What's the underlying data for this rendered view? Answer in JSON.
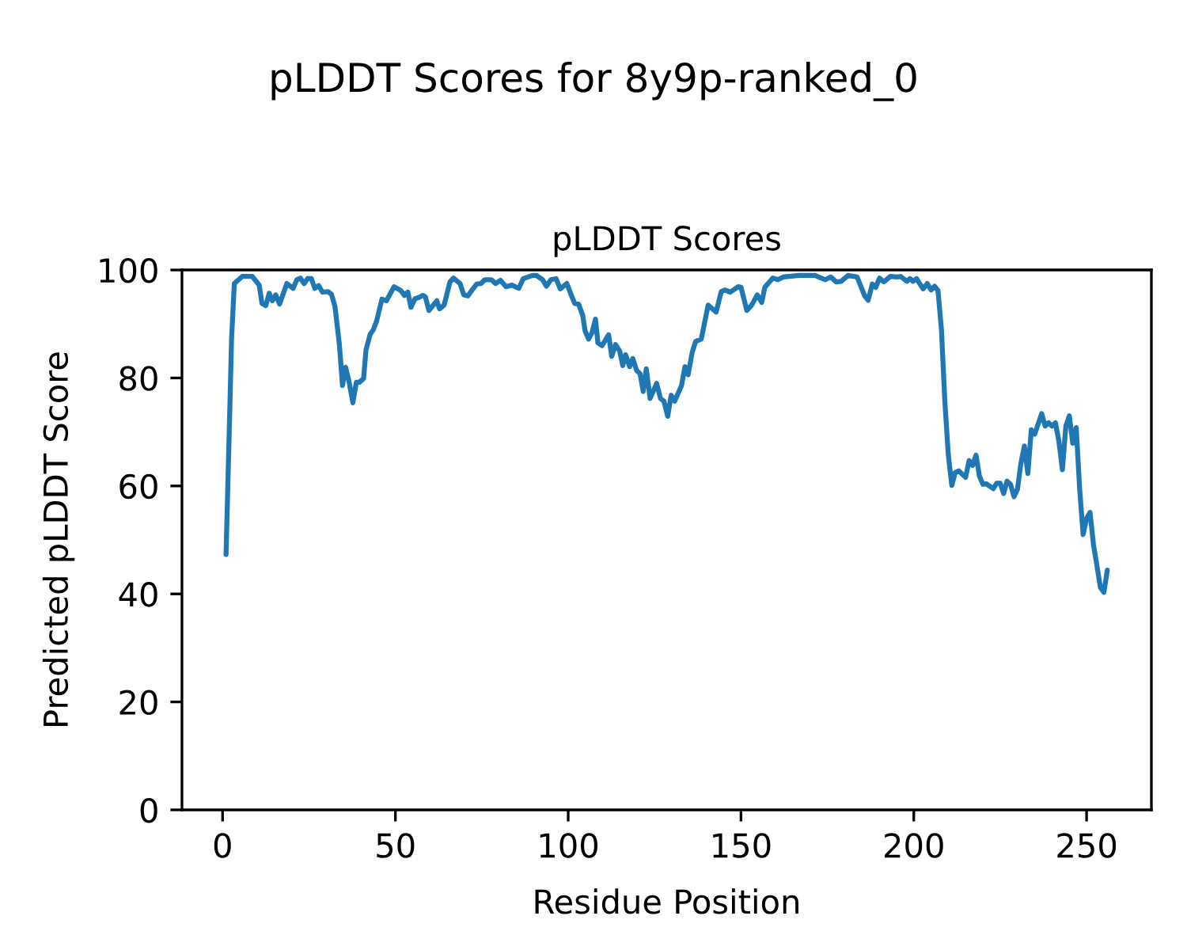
{
  "chart_data": {
    "type": "line",
    "title": "pLDDT Scores for 8y9p-ranked_0",
    "subtitle": "pLDDT Scores",
    "xlabel": "Residue Position",
    "ylabel": "Predicted pLDDT Score",
    "xlim": [
      -11.75,
      268.75
    ],
    "ylim": [
      0,
      100
    ],
    "xticks": [
      0,
      50,
      100,
      150,
      200,
      250
    ],
    "yticks": [
      0,
      20,
      40,
      60,
      80,
      100
    ],
    "grid": false,
    "series": [
      {
        "color": "#1f77b4",
        "x": [
          1,
          2,
          2.6,
          3.4,
          5.7,
          8.6,
          10.6,
          11.4,
          12.5,
          13.5,
          14.4,
          15.4,
          16.5,
          18.6,
          20.4,
          21.5,
          22.5,
          23.6,
          24.6,
          25.7,
          26.7,
          27.8,
          28.9,
          30.5,
          31.5,
          32.5,
          33.8,
          34.7,
          35.6,
          36.6,
          37.7,
          38.7,
          39.6,
          40.8,
          41.5,
          42.7,
          43.6,
          44.6,
          46.1,
          47.4,
          49.6,
          51.6,
          52.6,
          53.6,
          54.5,
          55.7,
          56.8,
          58,
          58.7,
          59.7,
          61,
          62,
          62.8,
          64.1,
          65.8,
          66.8,
          68.7,
          69.8,
          71,
          72.1,
          73.5,
          74.8,
          75.9,
          77.8,
          79,
          80.4,
          82,
          83.7,
          85.7,
          87,
          89.7,
          90.8,
          92.6,
          93.7,
          95,
          96.5,
          97.7,
          99.6,
          100.8,
          101.9,
          103,
          104.2,
          104.9,
          105.9,
          106.9,
          107.9,
          108.6,
          109.8,
          111.7,
          112.6,
          113.7,
          114.9,
          115.8,
          116.6,
          117.8,
          118.7,
          119.8,
          120.8,
          121.7,
          122.6,
          123.7,
          125.6,
          126.7,
          127.7,
          128.8,
          129.8,
          130.8,
          132.8,
          133.8,
          134.7,
          135.9,
          136.9,
          138.5,
          140.5,
          142.8,
          144.3,
          145.3,
          146.9,
          149.2,
          150,
          151.7,
          153.1,
          154.7,
          156,
          156.9,
          159.2,
          160.7,
          162.2,
          166.8,
          171.4,
          174.4,
          176,
          177.5,
          179,
          181,
          183.6,
          185.8,
          186.8,
          188,
          189,
          190.1,
          191.3,
          193.2,
          195.1,
          196.2,
          198,
          198.9,
          199.8,
          200.8,
          202.7,
          203.9,
          205,
          206,
          207,
          208,
          209,
          210,
          211,
          212,
          213,
          215,
          216,
          217,
          218,
          219,
          220,
          221,
          223,
          224,
          225,
          226,
          227,
          228,
          229,
          230,
          231,
          232,
          233,
          234,
          235,
          236,
          237,
          238,
          239,
          240,
          241,
          242,
          243,
          244,
          245,
          246,
          247,
          248,
          249,
          250,
          251,
          252,
          253,
          254,
          255,
          256
        ],
        "values": [
          47.3,
          71.8,
          87.2,
          97.5,
          98.8,
          98.8,
          97.2,
          93.8,
          93.4,
          95.7,
          94.3,
          95.4,
          93.7,
          97.5,
          96.6,
          98.2,
          98.5,
          97.5,
          98.4,
          98.4,
          96.6,
          97.1,
          95.9,
          96,
          95.5,
          93.3,
          86.2,
          78.6,
          82,
          79.3,
          75.4,
          79.2,
          79.2,
          79.9,
          85.2,
          88.1,
          88.9,
          90.6,
          94.6,
          94.3,
          96.9,
          96.2,
          95.3,
          95.9,
          93.1,
          94.7,
          94.9,
          95.3,
          95,
          92.5,
          93.5,
          94.3,
          92.8,
          93.5,
          97.8,
          98.5,
          97.5,
          95.4,
          95.2,
          96.2,
          97.4,
          97.5,
          98.2,
          98.2,
          97.5,
          98.1,
          96.9,
          97.2,
          96.6,
          98.4,
          99,
          99,
          98.2,
          97,
          98.2,
          98.4,
          96.5,
          97.5,
          95.5,
          93.8,
          93.7,
          91.6,
          88.7,
          87.2,
          88.4,
          90.9,
          86.5,
          86,
          88,
          84,
          86.2,
          85,
          82.3,
          84.3,
          82.1,
          83.6,
          81.4,
          80.8,
          77.5,
          81.7,
          76.2,
          79,
          76.2,
          75.7,
          72.9,
          76.8,
          75.7,
          78.6,
          82.1,
          80.6,
          84.8,
          86.8,
          87.2,
          93.5,
          92.2,
          96,
          96.3,
          95.9,
          96.9,
          96.8,
          92.5,
          93.5,
          95.4,
          94,
          96.8,
          98.5,
          98.2,
          98.7,
          99,
          99,
          98.2,
          98.7,
          97.8,
          97.9,
          99,
          98.7,
          95.2,
          94.4,
          97.4,
          96.8,
          98.5,
          97.8,
          98.8,
          98.7,
          98.8,
          97.9,
          98.4,
          97.9,
          98.4,
          96.5,
          97.5,
          96.3,
          97,
          96.2,
          89,
          75.5,
          65.7,
          60.1,
          62.5,
          62.8,
          61.6,
          64.7,
          63.8,
          65.7,
          61.8,
          60.3,
          60.4,
          59.5,
          60.5,
          60.5,
          58.6,
          60.9,
          60.3,
          58,
          59.4,
          64.2,
          67.4,
          62.3,
          70.4,
          69.6,
          71.5,
          73.4,
          71.1,
          71.7,
          71.1,
          71.7,
          68.2,
          63,
          71.1,
          73,
          67.9,
          70.8,
          59.4,
          51,
          54,
          55.1,
          49.1,
          45.2,
          41.2,
          40.3,
          44.4
        ]
      }
    ]
  }
}
